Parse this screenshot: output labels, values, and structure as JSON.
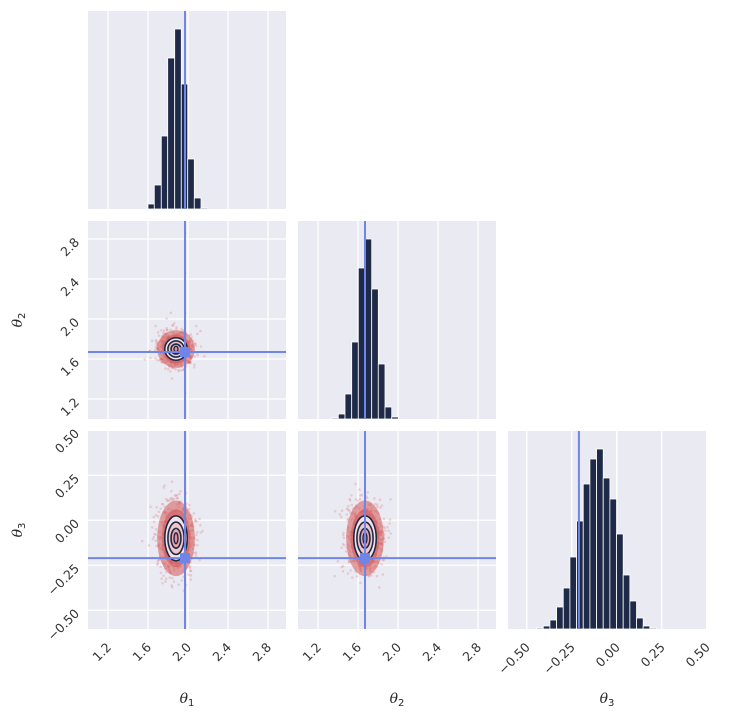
{
  "chart_data": {
    "type": "corner",
    "title": "",
    "parameters": [
      "θ1",
      "θ2",
      "θ3"
    ],
    "axis_labels": [
      {
        "symbol": "θ",
        "sub": "1"
      },
      {
        "symbol": "θ",
        "sub": "2"
      },
      {
        "symbol": "θ",
        "sub": "3"
      }
    ],
    "ranges": [
      [
        1.0,
        2.98
      ],
      [
        1.0,
        2.98
      ],
      [
        -0.604,
        0.496
      ]
    ],
    "ticks": [
      [
        "1.2",
        "1.6",
        "2.0",
        "2.4",
        "2.8"
      ],
      [
        "1.2",
        "1.6",
        "2.0",
        "2.4",
        "2.8"
      ],
      [
        "−0.50",
        "−0.25",
        "0.00",
        "0.25",
        "0.50"
      ]
    ],
    "tick_values": [
      [
        1.2,
        1.6,
        2.0,
        2.4,
        2.8
      ],
      [
        1.2,
        1.6,
        2.0,
        2.4,
        2.8
      ],
      [
        -0.5,
        -0.25,
        0.0,
        0.25,
        0.5
      ]
    ],
    "truths": [
      1.97,
      1.67,
      -0.21
    ],
    "grid": true,
    "colors": {
      "background": "#EAEAF2",
      "grid": "#FFFFFF",
      "hist_bar": "#1F2A48",
      "truth": "#6F86E8",
      "scatter": "#D45A5A",
      "contour_line": "#1F2A48",
      "contour_fill_outer": "#F5E4E6",
      "contour_fill_mid": "#EFC6C9",
      "contour_fill_inner": "#E9A6AA"
    },
    "histograms": [
      {
        "param": "θ1",
        "bin_edges": [
          1.6,
          1.663,
          1.733,
          1.797,
          1.867,
          1.933,
          1.997,
          2.063,
          2.13,
          2.197
        ],
        "counts_relative": [
          5,
          24,
          73,
          151,
          180,
          125,
          50,
          11,
          1
        ]
      },
      {
        "param": "θ2",
        "bin_edges": [
          1.337,
          1.403,
          1.47,
          1.537,
          1.603,
          1.67,
          1.737,
          1.803,
          1.87,
          1.937,
          2.003
        ],
        "counts_relative": [
          1,
          5,
          25,
          77,
          151,
          180,
          130,
          55,
          12,
          2
        ]
      },
      {
        "param": "θ3",
        "bin_edges": [
          -0.445,
          -0.408,
          -0.371,
          -0.334,
          -0.297,
          -0.26,
          -0.223,
          -0.186,
          -0.149,
          -0.112,
          -0.075,
          -0.038,
          -0.001,
          0.036,
          0.073,
          0.11,
          0.147,
          0.184,
          0.221
        ],
        "counts_relative": [
          1,
          3,
          9,
          22,
          41,
          72,
          108,
          145,
          170,
          180,
          151,
          130,
          95,
          54,
          28,
          11,
          3,
          1
        ]
      }
    ],
    "joint_2d": [
      {
        "x": "θ1",
        "y": "θ2",
        "center": [
          1.88,
          1.7
        ],
        "sigma": [
          0.09,
          0.09
        ]
      },
      {
        "x": "θ1",
        "y": "θ3",
        "center": [
          1.88,
          -0.1
        ],
        "sigma": [
          0.09,
          0.1
        ]
      },
      {
        "x": "θ2",
        "y": "θ3",
        "center": [
          1.67,
          -0.1
        ],
        "sigma": [
          0.09,
          0.1
        ]
      }
    ]
  }
}
